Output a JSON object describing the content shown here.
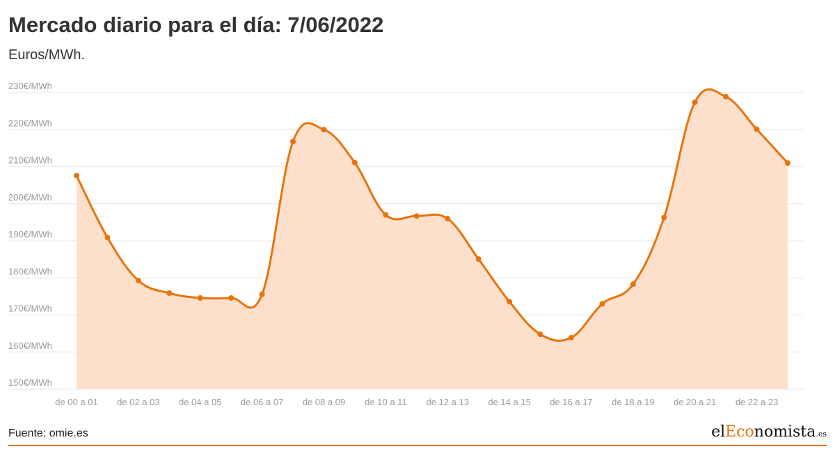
{
  "header": {
    "title": "Mercado diario para el día: 7/06/2022",
    "subtitle": "Euros/MWh."
  },
  "footer": {
    "source": "Fuente: omie.es",
    "logo": {
      "prefix": "el",
      "accent": "Eco",
      "rest": "nomista",
      "tld": ".es"
    }
  },
  "colors": {
    "line": "#e8730c",
    "fill": "#fde0cc",
    "grid": "#e6e6e6",
    "tick": "#9a9a9a",
    "accent": "#e8730c"
  },
  "chart_data": {
    "type": "area",
    "title": "Mercado diario para el día: 7/06/2022",
    "ylabel": "",
    "xlabel": "",
    "ylim": [
      150,
      230
    ],
    "y_ticks": [
      150,
      160,
      170,
      180,
      190,
      200,
      210,
      220,
      230
    ],
    "y_tick_labels": [
      "150€/MWh",
      "160€/MWh",
      "170€/MWh",
      "180€/MWh",
      "190€/MWh",
      "200€/MWh",
      "210€/MWh",
      "220€/MWh",
      "230€/MWh"
    ],
    "x_tick_labels": [
      "de 00 a 01",
      "de 02 a 03",
      "de 04 a 05",
      "de 06 a 07",
      "de 08 a 09",
      "de 10 a 11",
      "de 12 a 13",
      "de 14 a 15",
      "de 16 a 17",
      "de 18 a 19",
      "de 20 a 21",
      "de 22 a 23"
    ],
    "grid": true,
    "x": [
      0,
      1,
      2,
      3,
      4,
      5,
      6,
      7,
      8,
      9,
      10,
      11,
      12,
      13,
      14,
      15,
      16,
      17,
      18,
      19,
      20,
      21,
      22,
      23
    ],
    "values": [
      207.6,
      190.9,
      179.3,
      175.9,
      174.6,
      174.6,
      175.6,
      216.8,
      220.0,
      211.1,
      197.0,
      196.7,
      196.0,
      185.1,
      173.6,
      164.8,
      163.9,
      173.0,
      178.3,
      196.3,
      227.4,
      228.9,
      220.1,
      211.0
    ]
  }
}
